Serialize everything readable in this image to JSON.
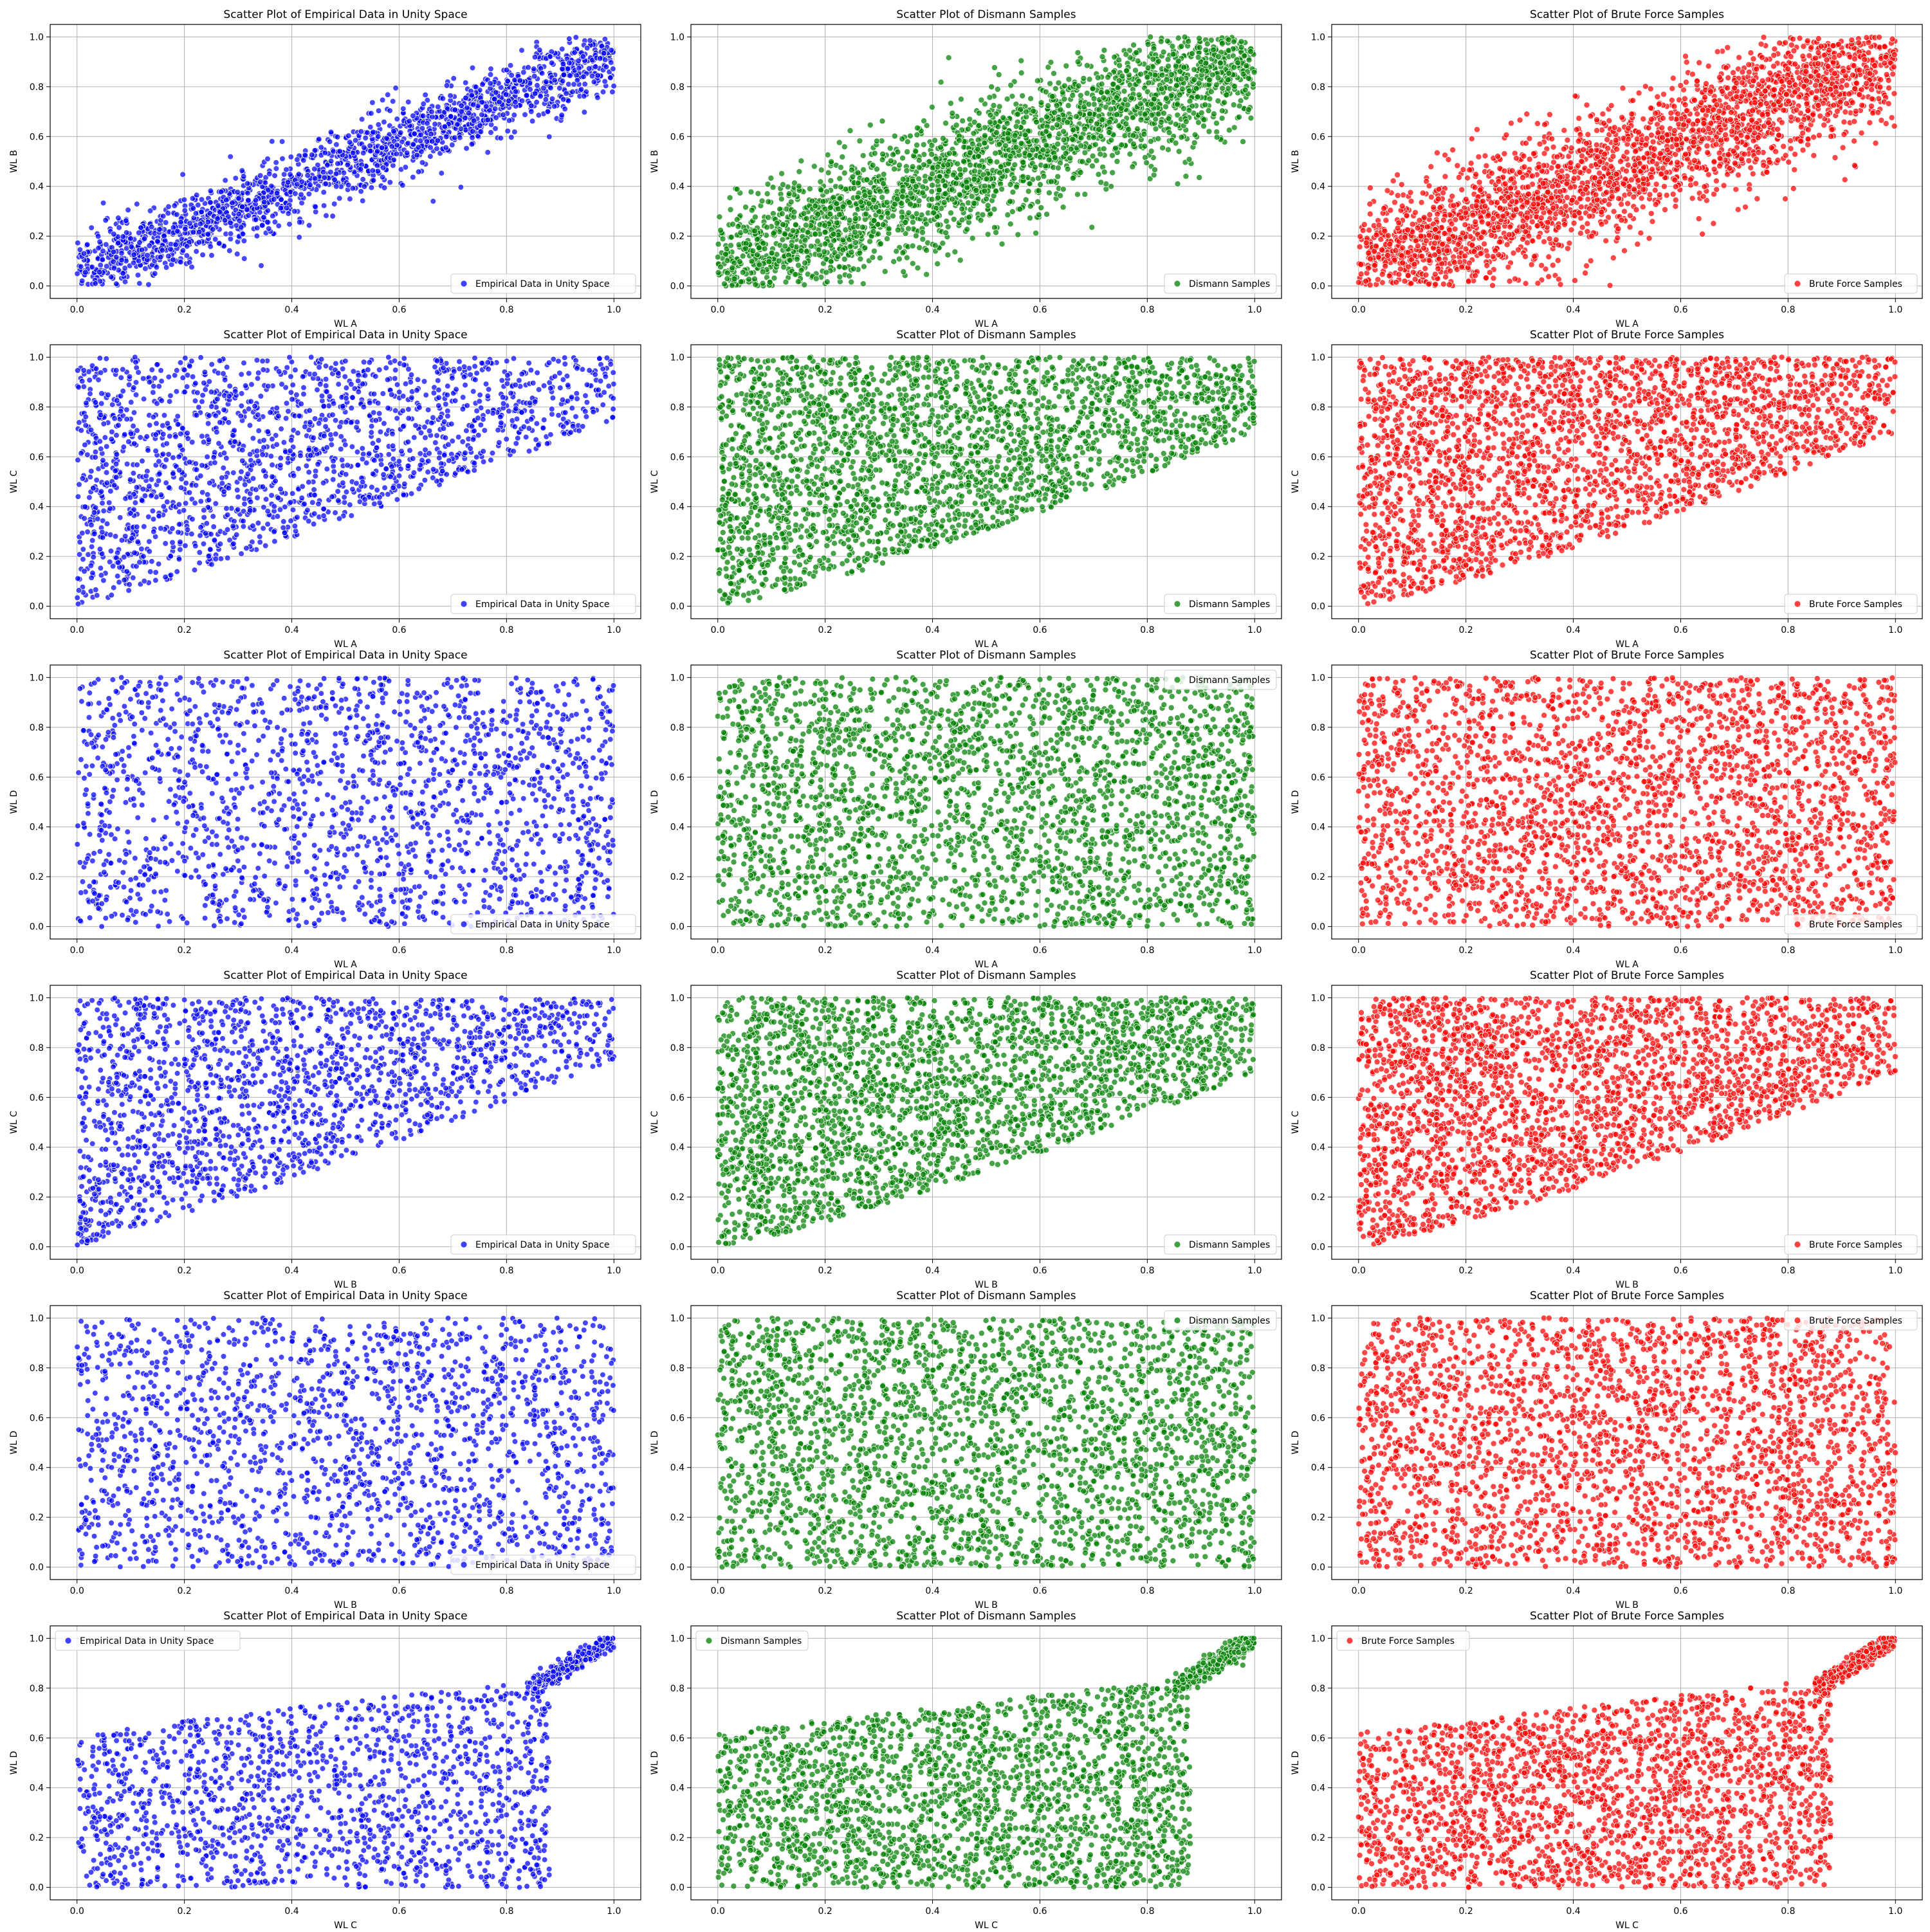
{
  "figure": {
    "columns": [
      {
        "title": "Scatter Plot of Empirical Data in Unity Space",
        "legend": "Empirical Data in Unity Space",
        "color": "#0000ff",
        "points_per_panel": 1800,
        "density": "sparse"
      },
      {
        "title": "Scatter Plot of Dismann Samples",
        "legend": "Dismann Samples",
        "color": "#008000",
        "points_per_panel": 2600,
        "density": "dense"
      },
      {
        "title": "Scatter Plot of Brute Force Samples",
        "legend": "Brute Force Samples",
        "color": "#ff0000",
        "points_per_panel": 2600,
        "density": "dense"
      }
    ],
    "rows": [
      {
        "xlabel": "WL A",
        "ylabel": "WL B",
        "shape": "positive-correlation",
        "legend_position": [
          "lower right",
          "lower right",
          "lower right"
        ]
      },
      {
        "xlabel": "WL A",
        "ylabel": "WL C",
        "shape": "upper-triangle",
        "legend_position": [
          "lower right",
          "lower right",
          "lower right"
        ]
      },
      {
        "xlabel": "WL A",
        "ylabel": "WL D",
        "shape": "uniform",
        "legend_position": [
          "lower right",
          "upper right",
          "lower right"
        ]
      },
      {
        "xlabel": "WL B",
        "ylabel": "WL C",
        "shape": "upper-triangle",
        "legend_position": [
          "lower right",
          "lower right",
          "lower right"
        ]
      },
      {
        "xlabel": "WL B",
        "ylabel": "WL D",
        "shape": "uniform",
        "legend_position": [
          "lower right",
          "upper right",
          "upper right"
        ]
      },
      {
        "xlabel": "WL C",
        "ylabel": "WL D",
        "shape": "bounded-below-0.8",
        "legend_position": [
          "upper left",
          "upper left",
          "upper left"
        ]
      }
    ],
    "ticks": [
      "0.0",
      "0.2",
      "0.4",
      "0.6",
      "0.8",
      "1.0"
    ]
  },
  "chart_data": [
    {
      "type": "scatter",
      "title": "Scatter Plot of Empirical Data in Unity Space",
      "xlabel": "WL A",
      "ylabel": "WL B",
      "series": [
        {
          "name": "Empirical Data in Unity Space",
          "color": "#0000ff"
        }
      ],
      "xlim": [
        -0.05,
        1.05
      ],
      "ylim": [
        -0.05,
        1.05
      ],
      "grid": true,
      "legend": "lower right",
      "pattern": "points along diagonal band, WL B ≈ WL A ± 0.15"
    },
    {
      "type": "scatter",
      "title": "Scatter Plot of Dismann Samples",
      "xlabel": "WL A",
      "ylabel": "WL B",
      "series": [
        {
          "name": "Dismann Samples",
          "color": "#008000"
        }
      ],
      "xlim": [
        -0.05,
        1.05
      ],
      "ylim": [
        -0.05,
        1.05
      ],
      "grid": true,
      "legend": "lower right",
      "pattern": "wide diagonal band"
    },
    {
      "type": "scatter",
      "title": "Scatter Plot of Brute Force Samples",
      "xlabel": "WL A",
      "ylabel": "WL B",
      "series": [
        {
          "name": "Brute Force Samples",
          "color": "#ff0000"
        }
      ],
      "xlim": [
        -0.05,
        1.05
      ],
      "ylim": [
        -0.05,
        1.05
      ],
      "grid": true,
      "legend": "lower right",
      "pattern": "wide diagonal band"
    },
    {
      "type": "scatter",
      "title": "Scatter Plot of Empirical Data in Unity Space",
      "xlabel": "WL A",
      "ylabel": "WL C",
      "series": [
        {
          "name": "Empirical Data in Unity Space",
          "color": "#0000ff"
        }
      ],
      "xlim": [
        -0.05,
        1.05
      ],
      "ylim": [
        -0.05,
        1.05
      ],
      "grid": true,
      "legend": "lower right",
      "pattern": "WL C above ~0.7·WL A"
    },
    {
      "type": "scatter",
      "title": "Scatter Plot of Dismann Samples",
      "xlabel": "WL A",
      "ylabel": "WL C",
      "series": [
        {
          "name": "Dismann Samples",
          "color": "#008000"
        }
      ],
      "xlim": [
        -0.05,
        1.05
      ],
      "ylim": [
        -0.05,
        1.05
      ],
      "grid": true,
      "legend": "lower right",
      "pattern": "WL C above ~0.7·WL A"
    },
    {
      "type": "scatter",
      "title": "Scatter Plot of Brute Force Samples",
      "xlabel": "WL A",
      "ylabel": "WL C",
      "series": [
        {
          "name": "Brute Force Samples",
          "color": "#ff0000"
        }
      ],
      "xlim": [
        -0.05,
        1.05
      ],
      "ylim": [
        -0.05,
        1.05
      ],
      "grid": true,
      "legend": "lower right",
      "pattern": "WL C above ~0.7·WL A"
    },
    {
      "type": "scatter",
      "title": "Scatter Plot of Empirical Data in Unity Space",
      "xlabel": "WL A",
      "ylabel": "WL D",
      "series": [
        {
          "name": "Empirical Data in Unity Space",
          "color": "#0000ff"
        }
      ],
      "xlim": [
        -0.05,
        1.05
      ],
      "ylim": [
        -0.05,
        1.05
      ],
      "grid": true,
      "legend": "lower right",
      "pattern": "uniform over unit square"
    },
    {
      "type": "scatter",
      "title": "Scatter Plot of Dismann Samples",
      "xlabel": "WL A",
      "ylabel": "WL D",
      "series": [
        {
          "name": "Dismann Samples",
          "color": "#008000"
        }
      ],
      "xlim": [
        -0.05,
        1.05
      ],
      "ylim": [
        -0.05,
        1.05
      ],
      "grid": true,
      "legend": "upper right",
      "pattern": "uniform over unit square"
    },
    {
      "type": "scatter",
      "title": "Scatter Plot of Brute Force Samples",
      "xlabel": "WL A",
      "ylabel": "WL D",
      "series": [
        {
          "name": "Brute Force Samples",
          "color": "#ff0000"
        }
      ],
      "xlim": [
        -0.05,
        1.05
      ],
      "ylim": [
        -0.05,
        1.05
      ],
      "grid": true,
      "legend": "lower right",
      "pattern": "uniform over unit square"
    },
    {
      "type": "scatter",
      "title": "Scatter Plot of Empirical Data in Unity Space",
      "xlabel": "WL B",
      "ylabel": "WL C",
      "series": [
        {
          "name": "Empirical Data in Unity Space",
          "color": "#0000ff"
        }
      ],
      "xlim": [
        -0.05,
        1.05
      ],
      "ylim": [
        -0.05,
        1.05
      ],
      "grid": true,
      "legend": "lower right",
      "pattern": "WL C above ~0.7·WL B"
    },
    {
      "type": "scatter",
      "title": "Scatter Plot of Dismann Samples",
      "xlabel": "WL B",
      "ylabel": "WL C",
      "series": [
        {
          "name": "Dismann Samples",
          "color": "#008000"
        }
      ],
      "xlim": [
        -0.05,
        1.05
      ],
      "ylim": [
        -0.05,
        1.05
      ],
      "grid": true,
      "legend": "lower right",
      "pattern": "WL C above ~0.7·WL B"
    },
    {
      "type": "scatter",
      "title": "Scatter Plot of Brute Force Samples",
      "xlabel": "WL B",
      "ylabel": "WL C",
      "series": [
        {
          "name": "Brute Force Samples",
          "color": "#ff0000"
        }
      ],
      "xlim": [
        -0.05,
        1.05
      ],
      "ylim": [
        -0.05,
        1.05
      ],
      "grid": true,
      "legend": "lower right",
      "pattern": "WL C above ~0.7·WL B"
    },
    {
      "type": "scatter",
      "title": "Scatter Plot of Empirical Data in Unity Space",
      "xlabel": "WL B",
      "ylabel": "WL D",
      "series": [
        {
          "name": "Empirical Data in Unity Space",
          "color": "#0000ff"
        }
      ],
      "xlim": [
        -0.05,
        1.05
      ],
      "ylim": [
        -0.05,
        1.05
      ],
      "grid": true,
      "legend": "lower right",
      "pattern": "uniform over unit square"
    },
    {
      "type": "scatter",
      "title": "Scatter Plot of Dismann Samples",
      "xlabel": "WL B",
      "ylabel": "WL D",
      "series": [
        {
          "name": "Dismann Samples",
          "color": "#008000"
        }
      ],
      "xlim": [
        -0.05,
        1.05
      ],
      "ylim": [
        -0.05,
        1.05
      ],
      "grid": true,
      "legend": "upper right",
      "pattern": "uniform over unit square"
    },
    {
      "type": "scatter",
      "title": "Scatter Plot of Brute Force Samples",
      "xlabel": "WL B",
      "ylabel": "WL D",
      "series": [
        {
          "name": "Brute Force Samples",
          "color": "#ff0000"
        }
      ],
      "xlim": [
        -0.05,
        1.05
      ],
      "ylim": [
        -0.05,
        1.05
      ],
      "grid": true,
      "legend": "upper right",
      "pattern": "uniform over unit square"
    },
    {
      "type": "scatter",
      "title": "Scatter Plot of Empirical Data in Unity Space",
      "xlabel": "WL C",
      "ylabel": "WL D",
      "series": [
        {
          "name": "Empirical Data in Unity Space",
          "color": "#0000ff"
        }
      ],
      "xlim": [
        -0.05,
        1.05
      ],
      "ylim": [
        -0.05,
        1.05
      ],
      "grid": true,
      "legend": "upper left",
      "pattern": "WL D below ~0.6 + 0.3·WL C, WL C mostly < 0.85, tail to (1,1)"
    },
    {
      "type": "scatter",
      "title": "Scatter Plot of Dismann Samples",
      "xlabel": "WL C",
      "ylabel": "WL D",
      "series": [
        {
          "name": "Dismann Samples",
          "color": "#008000"
        }
      ],
      "xlim": [
        -0.05,
        1.05
      ],
      "ylim": [
        -0.05,
        1.05
      ],
      "grid": true,
      "legend": "upper left",
      "pattern": "WL D below ~0.6 + 0.3·WL C, tail to (1,1)"
    },
    {
      "type": "scatter",
      "title": "Scatter Plot of Brute Force Samples",
      "xlabel": "WL C",
      "ylabel": "WL D",
      "series": [
        {
          "name": "Brute Force Samples",
          "color": "#ff0000"
        }
      ],
      "xlim": [
        -0.05,
        1.05
      ],
      "ylim": [
        -0.05,
        1.05
      ],
      "grid": true,
      "legend": "upper left",
      "pattern": "WL D below ~0.6 + 0.3·WL C, tail to (1,1)"
    }
  ]
}
